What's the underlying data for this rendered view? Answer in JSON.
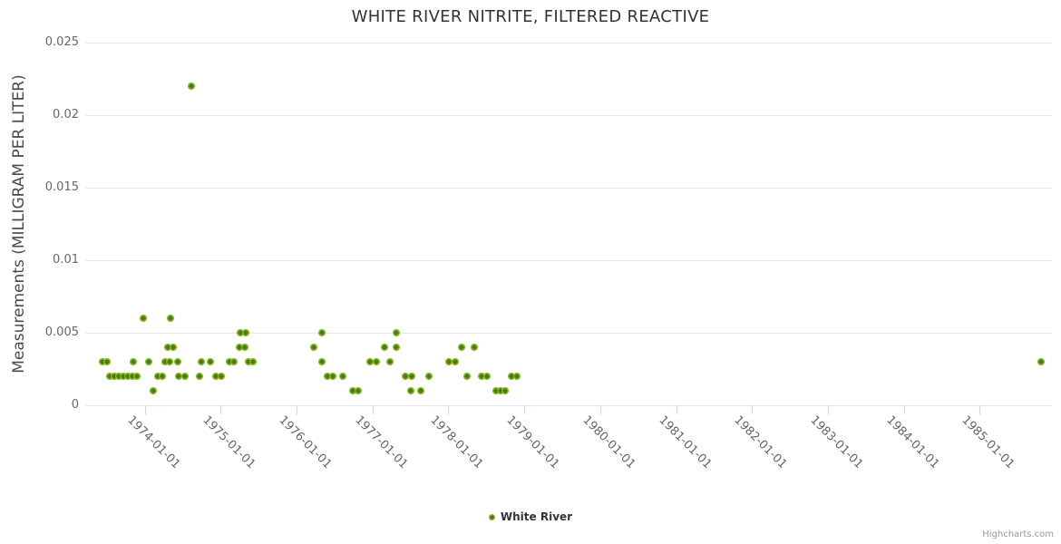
{
  "page": {
    "credit": "Highcharts.com"
  },
  "chart_data": {
    "type": "scatter",
    "title": "WHITE RIVER NITRITE, FILTERED REACTIVE",
    "xlabel": "",
    "ylabel": "Measurements (MILLIGRAM PER LITER)",
    "ylim": [
      0,
      0.025
    ],
    "yticks": [
      0,
      0.005,
      0.01,
      0.015,
      0.02,
      0.025
    ],
    "ytick_labels": [
      "0",
      "0.005",
      "0.01",
      "0.015",
      "0.02",
      "0.025"
    ],
    "xtick_dates": [
      "1974-01-01",
      "1975-01-01",
      "1976-01-01",
      "1977-01-01",
      "1978-01-01",
      "1979-01-01",
      "1980-01-01",
      "1981-01-01",
      "1982-01-01",
      "1983-01-01",
      "1984-01-01",
      "1985-01-01"
    ],
    "xlim_dates": [
      "1973-03-20",
      "1985-12-15"
    ],
    "grid": "horizontal",
    "legend_position": "bottom-center",
    "colors": {
      "marker_outer": "#83b71f",
      "marker_inner": "#4c7a11",
      "grid": "#e6e6e6",
      "axis": "#ccd6eb",
      "title": "#333333",
      "tick_label": "#666666",
      "axis_title": "#4a4a4a",
      "legend_label": "#333333",
      "credit": "#999999"
    },
    "series": [
      {
        "name": "White River",
        "points": [
          [
            "1973-06-13",
            0.003
          ],
          [
            "1973-07-01",
            0.003
          ],
          [
            "1973-07-16",
            0.002
          ],
          [
            "1973-08-07",
            0.002
          ],
          [
            "1973-08-29",
            0.002
          ],
          [
            "1973-09-20",
            0.002
          ],
          [
            "1973-10-12",
            0.002
          ],
          [
            "1973-11-03",
            0.002
          ],
          [
            "1973-11-06",
            0.003
          ],
          [
            "1973-11-25",
            0.002
          ],
          [
            "1973-12-22",
            0.006
          ],
          [
            "1974-01-18",
            0.003
          ],
          [
            "1974-02-11",
            0.001
          ],
          [
            "1974-03-05",
            0.002
          ],
          [
            "1974-03-24",
            0.002
          ],
          [
            "1974-04-08",
            0.003
          ],
          [
            "1974-04-19",
            0.004
          ],
          [
            "1974-05-01",
            0.003
          ],
          [
            "1974-05-06",
            0.006
          ],
          [
            "1974-05-17",
            0.004
          ],
          [
            "1974-06-08",
            0.003
          ],
          [
            "1974-06-12",
            0.002
          ],
          [
            "1974-07-11",
            0.002
          ],
          [
            "1974-08-11",
            0.022
          ],
          [
            "1974-09-19",
            0.002
          ],
          [
            "1974-10-01",
            0.003
          ],
          [
            "1974-11-14",
            0.003
          ],
          [
            "1974-12-10",
            0.002
          ],
          [
            "1975-01-04",
            0.002
          ],
          [
            "1975-02-10",
            0.003
          ],
          [
            "1975-03-07",
            0.003
          ],
          [
            "1975-04-02",
            0.004
          ],
          [
            "1975-04-06",
            0.005
          ],
          [
            "1975-04-25",
            0.004
          ],
          [
            "1975-05-01",
            0.005
          ],
          [
            "1975-05-12",
            0.003
          ],
          [
            "1975-06-07",
            0.003
          ],
          [
            "1976-03-25",
            0.004
          ],
          [
            "1976-04-30",
            0.005
          ],
          [
            "1976-05-01",
            0.003
          ],
          [
            "1976-05-26",
            0.002
          ],
          [
            "1976-06-24",
            0.002
          ],
          [
            "1976-08-11",
            0.002
          ],
          [
            "1976-09-27",
            0.001
          ],
          [
            "1976-10-23",
            0.001
          ],
          [
            "1976-12-20",
            0.003
          ],
          [
            "1977-01-21",
            0.003
          ],
          [
            "1977-02-26",
            0.004
          ],
          [
            "1977-03-24",
            0.003
          ],
          [
            "1977-04-24",
            0.005
          ],
          [
            "1977-04-24",
            0.004
          ],
          [
            "1977-06-10",
            0.002
          ],
          [
            "1977-07-02",
            0.001
          ],
          [
            "1977-07-10",
            0.002
          ],
          [
            "1977-08-22",
            0.001
          ],
          [
            "1977-09-28",
            0.002
          ],
          [
            "1978-01-04",
            0.003
          ],
          [
            "1978-02-02",
            0.003
          ],
          [
            "1978-03-07",
            0.004
          ],
          [
            "1978-04-01",
            0.002
          ],
          [
            "1978-05-04",
            0.004
          ],
          [
            "1978-06-09",
            0.002
          ],
          [
            "1978-07-05",
            0.002
          ],
          [
            "1978-08-18",
            0.001
          ],
          [
            "1978-09-09",
            0.001
          ],
          [
            "1978-10-01",
            0.001
          ],
          [
            "1978-10-30",
            0.002
          ],
          [
            "1978-11-28",
            0.002
          ],
          [
            "1985-10-23",
            0.003
          ]
        ]
      }
    ]
  }
}
